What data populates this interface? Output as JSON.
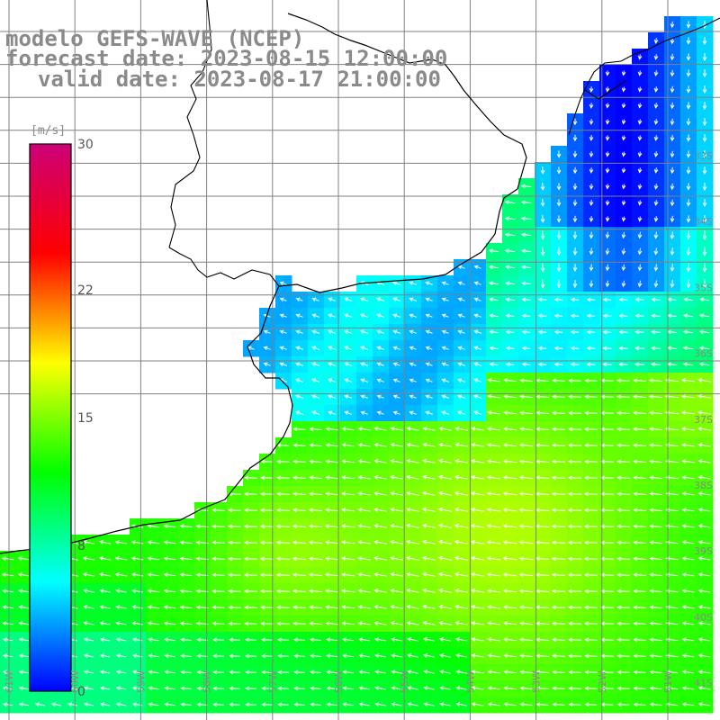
{
  "titles": {
    "line1": "modelo GEFS-WAVE (NCEP)",
    "line2": "forecast date: 2023-08-15 12:00:00",
    "line3": "valid date: 2023-08-17 21:00:00"
  },
  "colorbar": {
    "unit": "[m/s]",
    "tick_labels": [
      "30",
      "22",
      "15",
      "8",
      "0"
    ],
    "ticks": [
      30,
      22,
      15,
      8,
      0
    ],
    "colors": [
      "#0000ff",
      "#00ffff",
      "#00ff00",
      "#ffff00",
      "#ff0000",
      "#cc0077"
    ]
  },
  "lat_labels": [
    "33S",
    "34S",
    "35S",
    "36S",
    "37S",
    "38S",
    "39S",
    "40S",
    "41S"
  ],
  "lon_labels": [
    "61W",
    "60W",
    "59W",
    "58W",
    "57W",
    "56W",
    "55W",
    "54W",
    "53W",
    "52W",
    "51W"
  ],
  "colors": {
    "land": "#ffffff",
    "coast": "#000000",
    "grid": "#808080",
    "arrow": "#ffffff",
    "title": "#8a8a8a",
    "label": "#8a8a8a"
  }
}
